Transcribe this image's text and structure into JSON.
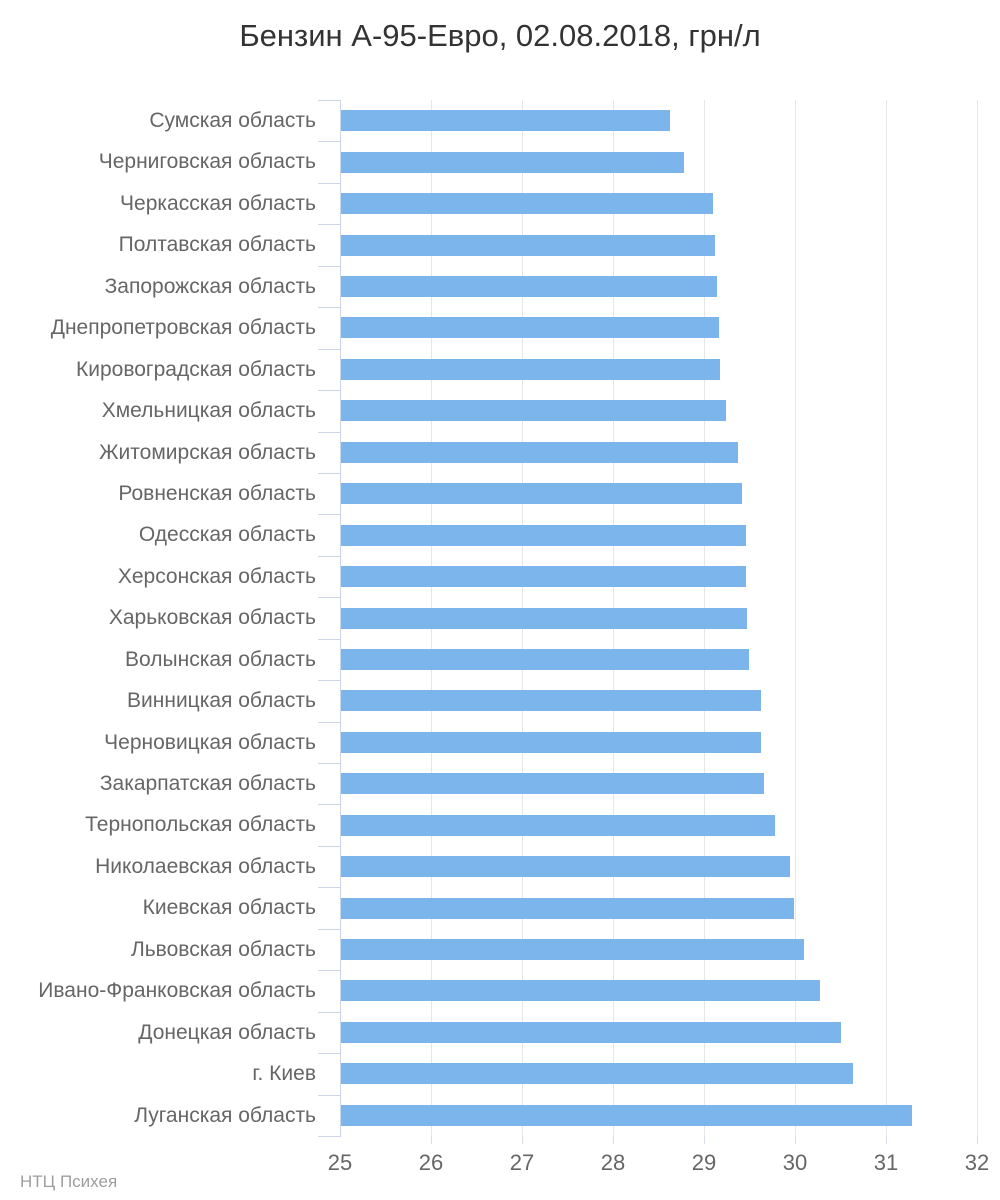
{
  "title": "Бензин А-95-Евро, 02.08.2018, грн/л",
  "footer": "НТЦ Психея",
  "colors": {
    "bar": "#7cb5ec",
    "gridline": "#e6e6e6",
    "axis": "#ccd6eb",
    "x_tick": "#d8dde6",
    "category_label": "#666666",
    "axis_label": "#666666",
    "title": "#333333",
    "footer": "#9e9e9e",
    "background": "#ffffff"
  },
  "chart_data": {
    "type": "bar",
    "orientation": "horizontal",
    "title": "Бензин А-95-Евро, 02.08.2018, грн/л",
    "xlabel": "",
    "ylabel": "",
    "unit": "грн/л",
    "xlim": [
      25,
      32
    ],
    "xticks": [
      25,
      26,
      27,
      28,
      29,
      30,
      31,
      32
    ],
    "grid": true,
    "legend": false,
    "categories": [
      "Сумская область",
      "Черниговская область",
      "Черкасская область",
      "Полтавская область",
      "Запорожская область",
      "Днепропетровская область",
      "Кировоградская область",
      "Хмельницкая область",
      "Житомирская область",
      "Ровненская область",
      "Одесская область",
      "Херсонская область",
      "Харьковская область",
      "Волынская область",
      "Винницкая область",
      "Черновицкая область",
      "Закарпатская область",
      "Тернопольская область",
      "Николаевская область",
      "Киевская область",
      "Львовская область",
      "Ивано-Франковская область",
      "Донецкая область",
      "г. Киев",
      "Луганская область"
    ],
    "values": [
      28.61,
      28.77,
      29.09,
      29.11,
      29.13,
      29.15,
      29.17,
      29.23,
      29.36,
      29.41,
      29.45,
      29.45,
      29.46,
      29.48,
      29.62,
      29.62,
      29.65,
      29.77,
      29.93,
      29.98,
      30.09,
      30.26,
      30.49,
      30.63,
      31.28
    ]
  }
}
